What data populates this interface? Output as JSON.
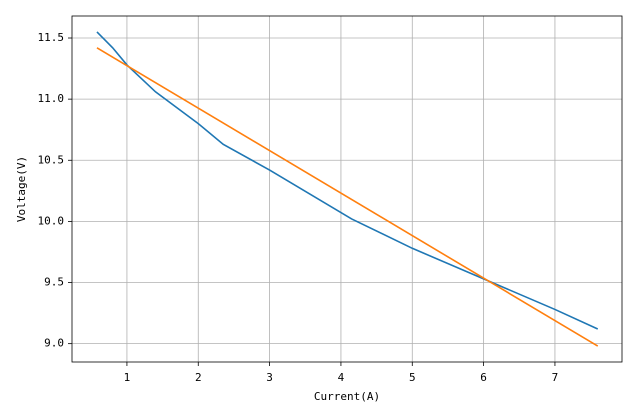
{
  "chart_data": {
    "type": "line",
    "xlabel": "Current(A)",
    "ylabel": "Voltage(V)",
    "series": [
      {
        "color": "#1f77b4",
        "x": [
          0.58,
          0.8,
          1.0,
          1.4,
          2.0,
          2.35,
          3.0,
          4.15,
          5.0,
          6.0,
          7.0,
          7.6
        ],
        "values": [
          11.55,
          11.42,
          11.28,
          11.06,
          10.8,
          10.63,
          10.42,
          10.02,
          9.78,
          9.53,
          9.28,
          9.12
        ]
      },
      {
        "color": "#ff7f0e",
        "x": [
          0.58,
          7.6
        ],
        "values": [
          11.42,
          8.98
        ]
      }
    ],
    "xlim": [
      0.23,
      7.94
    ],
    "ylim": [
      8.85,
      11.68
    ],
    "xticks": [
      1,
      2,
      3,
      4,
      5,
      6,
      7
    ],
    "yticks": [
      {
        "value": 9,
        "label": "9.0"
      },
      9.5,
      {
        "value": 10,
        "label": "10.0"
      },
      10.5,
      {
        "value": 11,
        "label": "11.0"
      },
      11.5
    ],
    "grid": true
  }
}
